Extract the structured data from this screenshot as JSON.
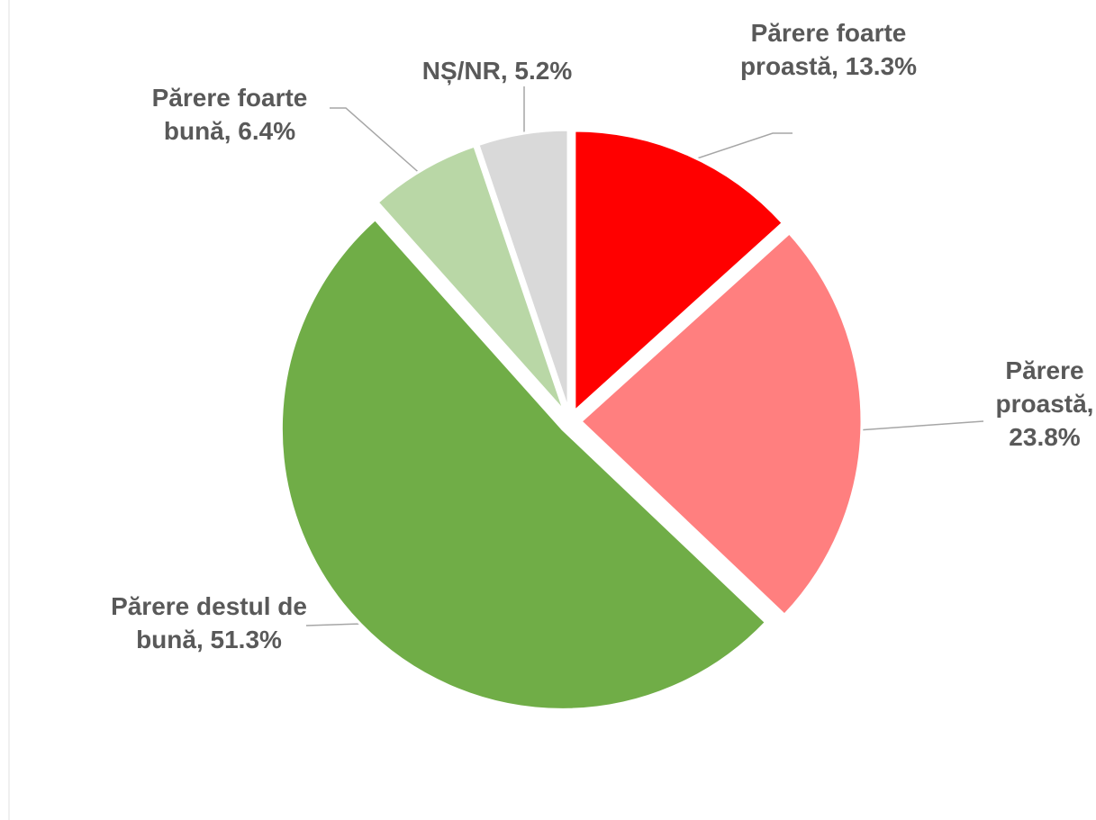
{
  "chart_data": {
    "type": "pie",
    "categories": [
      "Părere foarte proastă",
      "Părere proastă",
      "Părere destul de bună",
      "Părere foarte bună",
      "NȘ/NR"
    ],
    "values": [
      13.3,
      23.8,
      51.3,
      6.4,
      5.2
    ],
    "value_labels": [
      "Părere foarte proastă, 13.3%",
      "Părere proastă, 23.8%",
      "Părere destul de bună, 51.3%",
      "Părere foarte bună, 6.4%",
      "NȘ/NR, 5.2%"
    ],
    "colors": [
      "#ff0000",
      "#ff7f7f",
      "#70ad47",
      "#b9d7a6",
      "#d9d9d9"
    ]
  }
}
